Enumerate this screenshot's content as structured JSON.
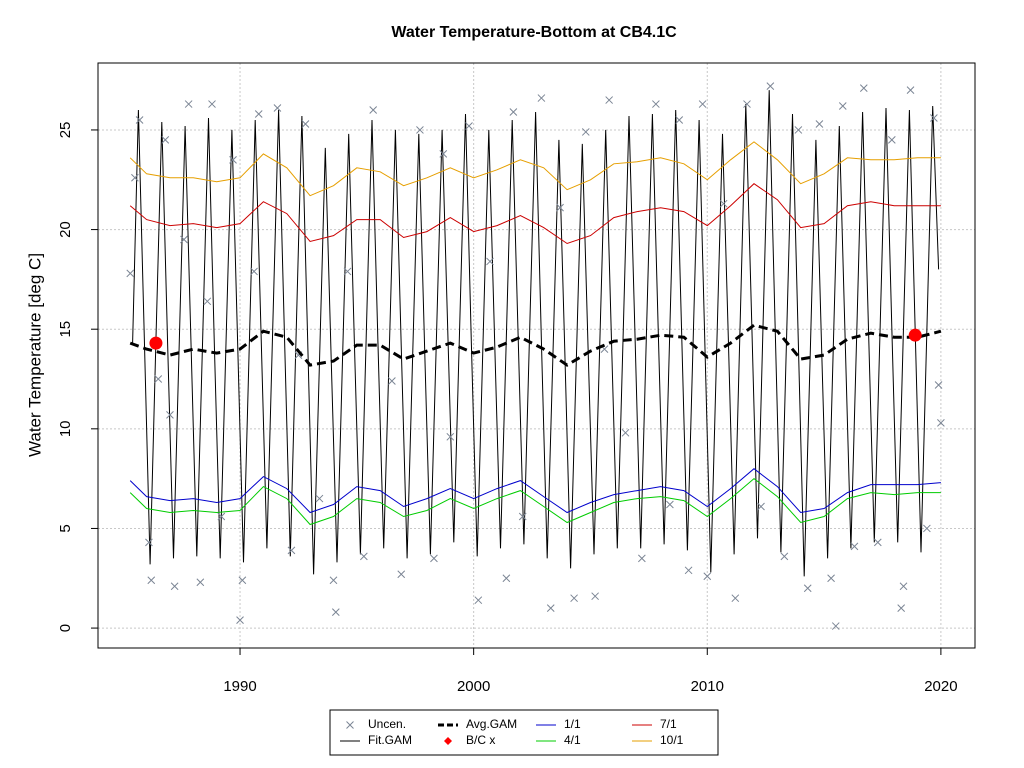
{
  "chart_data": {
    "type": "line",
    "title": "Water Temperature-Bottom at CB4.1C",
    "y_label": "Water Temperature [deg C]",
    "xlim": [
      1983.92,
      2021.46
    ],
    "ylim": [
      -1.0,
      28.36
    ],
    "xticks": [
      1990,
      2000,
      2010,
      2020
    ],
    "yticks": [
      0,
      5,
      10,
      15,
      20,
      25
    ],
    "grid": true,
    "legend_position": "bottom",
    "series": [
      {
        "name": "Uncen.",
        "style": "points",
        "color": "#7b8594",
        "x": [
          1985.3,
          1985.5,
          1985.7,
          1986.1,
          1986.2,
          1986.5,
          1986.8,
          1987.0,
          1987.2,
          1987.6,
          1987.8,
          1988.3,
          1988.6,
          1988.8,
          1989.2,
          1989.7,
          1990.0,
          1990.1,
          1990.6,
          1990.8,
          1991.6,
          1992.2,
          1992.5,
          1992.8,
          1993.4,
          1994.0,
          1994.1,
          1994.6,
          1995.3,
          1995.7,
          1996.5,
          1996.9,
          1997.7,
          1998.3,
          1998.7,
          1999.0,
          1999.8,
          2000.2,
          2000.7,
          2001.4,
          2001.7,
          2002.1,
          2002.9,
          2003.3,
          2003.7,
          2004.3,
          2004.8,
          2005.2,
          2005.6,
          2005.8,
          2006.5,
          2007.2,
          2007.8,
          2008.4,
          2008.8,
          2009.2,
          2009.8,
          2010.0,
          2010.7,
          2011.2,
          2011.7,
          2012.3,
          2012.7,
          2013.3,
          2013.9,
          2014.3,
          2014.8,
          2015.3,
          2015.5,
          2015.8,
          2016.3,
          2016.7,
          2017.3,
          2017.9,
          2018.3,
          2018.4,
          2018.7,
          2019.4,
          2019.7,
          2019.9,
          2020.0
        ],
        "values": [
          17.8,
          22.6,
          25.5,
          4.3,
          2.4,
          12.5,
          24.5,
          10.7,
          2.1,
          19.5,
          26.3,
          2.3,
          16.4,
          26.3,
          5.6,
          23.5,
          0.4,
          2.4,
          17.9,
          25.8,
          26.1,
          3.9,
          13.7,
          25.3,
          6.5,
          2.4,
          0.8,
          17.9,
          3.6,
          26.0,
          12.4,
          2.7,
          25.0,
          3.5,
          23.8,
          9.6,
          25.2,
          1.4,
          18.4,
          2.5,
          25.9,
          5.6,
          26.6,
          1.0,
          21.1,
          1.5,
          24.9,
          1.6,
          14.0,
          26.5,
          9.8,
          3.5,
          26.3,
          6.2,
          25.5,
          2.9,
          26.3,
          2.6,
          21.3,
          1.5,
          26.3,
          6.1,
          27.2,
          3.6,
          25.0,
          2.0,
          25.3,
          2.5,
          0.1,
          26.2,
          4.1,
          27.1,
          4.3,
          24.5,
          1.0,
          2.1,
          27.0,
          5.0,
          25.6,
          12.2,
          10.3
        ]
      },
      {
        "name": "Fit.GAM",
        "style": "line",
        "color": "#000000",
        "x": [
          1985.4,
          1985.65,
          1985.9,
          1986.15,
          1986.4,
          1986.65,
          1986.9,
          1987.15,
          1987.4,
          1987.65,
          1987.9,
          1988.15,
          1988.4,
          1988.65,
          1988.9,
          1989.15,
          1989.4,
          1989.65,
          1989.9,
          1990.15,
          1990.4,
          1990.65,
          1990.9,
          1991.15,
          1991.4,
          1991.65,
          1991.9,
          1992.15,
          1992.4,
          1992.65,
          1992.9,
          1993.15,
          1993.4,
          1993.65,
          1993.9,
          1994.15,
          1994.4,
          1994.65,
          1994.9,
          1995.15,
          1995.4,
          1995.65,
          1995.9,
          1996.15,
          1996.4,
          1996.65,
          1996.9,
          1997.15,
          1997.4,
          1997.65,
          1997.9,
          1998.15,
          1998.4,
          1998.65,
          1998.9,
          1999.15,
          1999.4,
          1999.65,
          1999.9,
          2000.15,
          2000.4,
          2000.65,
          2000.9,
          2001.15,
          2001.4,
          2001.65,
          2001.9,
          2002.15,
          2002.4,
          2002.65,
          2002.9,
          2003.15,
          2003.4,
          2003.65,
          2003.9,
          2004.15,
          2004.4,
          2004.65,
          2004.9,
          2005.15,
          2005.4,
          2005.65,
          2005.9,
          2006.15,
          2006.4,
          2006.65,
          2006.9,
          2007.15,
          2007.4,
          2007.65,
          2007.9,
          2008.15,
          2008.4,
          2008.65,
          2008.9,
          2009.15,
          2009.4,
          2009.65,
          2009.9,
          2010.15,
          2010.4,
          2010.65,
          2010.9,
          2011.15,
          2011.4,
          2011.65,
          2011.9,
          2012.15,
          2012.4,
          2012.65,
          2012.9,
          2013.15,
          2013.4,
          2013.65,
          2013.9,
          2014.15,
          2014.4,
          2014.65,
          2014.9,
          2015.15,
          2015.4,
          2015.65,
          2015.9,
          2016.15,
          2016.4,
          2016.65,
          2016.9,
          2017.15,
          2017.4,
          2017.65,
          2017.9,
          2018.15,
          2018.4,
          2018.65,
          2018.9,
          2019.15,
          2019.4,
          2019.65,
          2019.9
        ],
        "values": [
          14.3,
          26.0,
          14.6,
          3.2,
          14.4,
          25.4,
          14.3,
          3.5,
          14.4,
          25.2,
          14.3,
          3.6,
          14.6,
          25.6,
          14.3,
          3.5,
          14.3,
          25.0,
          14.2,
          3.3,
          14.4,
          25.5,
          14.7,
          4.0,
          15.0,
          26.0,
          14.8,
          3.6,
          14.7,
          25.7,
          14.2,
          2.7,
          13.4,
          24.1,
          13.5,
          3.3,
          14.0,
          24.8,
          14.1,
          3.7,
          14.6,
          25.5,
          14.4,
          4.0,
          14.5,
          25.0,
          14.2,
          3.5,
          14.1,
          24.8,
          14.1,
          3.7,
          14.3,
          25.0,
          14.5,
          4.3,
          15.0,
          25.8,
          14.4,
          3.6,
          14.3,
          25.0,
          14.3,
          4.0,
          14.7,
          25.5,
          14.9,
          4.2,
          15.0,
          25.9,
          14.4,
          3.5,
          14.0,
          24.5,
          13.9,
          3.0,
          13.6,
          24.3,
          14.0,
          3.7,
          14.3,
          25.0,
          14.4,
          4.0,
          14.8,
          25.7,
          14.9,
          4.0,
          14.9,
          25.8,
          15.0,
          4.2,
          15.1,
          26.0,
          14.9,
          3.9,
          14.7,
          25.5,
          14.2,
          2.8,
          13.8,
          24.8,
          14.6,
          3.7,
          15.0,
          26.3,
          15.4,
          4.5,
          15.7,
          27.0,
          15.4,
          3.8,
          14.8,
          25.8,
          14.2,
          2.6,
          13.5,
          24.5,
          13.9,
          3.5,
          14.3,
          25.2,
          14.6,
          4.0,
          14.9,
          25.9,
          15.0,
          4.3,
          15.2,
          26.1,
          15.1,
          4.3,
          15.1,
          26.0,
          14.9,
          3.8,
          15.0,
          26.2,
          18.0
        ]
      },
      {
        "name": "Avg.GAM",
        "style": "dashed",
        "color": "#000000",
        "x": [
          1985.3,
          1986,
          1987,
          1988,
          1989,
          1990,
          1991,
          1992,
          1993,
          1994,
          1995,
          1996,
          1997,
          1998,
          1999,
          2000,
          2001,
          2002,
          2003,
          2004,
          2005,
          2006,
          2007,
          2008,
          2009,
          2010,
          2011,
          2012,
          2013,
          2014,
          2015,
          2016,
          2017,
          2018,
          2019,
          2020
        ],
        "values": [
          14.3,
          14.0,
          13.7,
          14.0,
          13.8,
          14.0,
          14.9,
          14.6,
          13.2,
          13.4,
          14.2,
          14.2,
          13.5,
          13.9,
          14.3,
          13.8,
          14.1,
          14.6,
          14.0,
          13.2,
          13.9,
          14.4,
          14.5,
          14.7,
          14.6,
          13.6,
          14.3,
          15.2,
          14.9,
          13.5,
          13.7,
          14.5,
          14.8,
          14.6,
          14.6,
          14.9
        ]
      },
      {
        "name": "B/C x",
        "style": "dots",
        "color": "#ff0000",
        "x": [
          1986.4,
          2018.9
        ],
        "values": [
          14.3,
          14.7
        ]
      },
      {
        "name": "1/1",
        "style": "line",
        "color": "#0000cc",
        "x": [
          1985.3,
          1986,
          1987,
          1988,
          1989,
          1990,
          1991,
          1992,
          1993,
          1994,
          1995,
          1996,
          1997,
          1998,
          1999,
          2000,
          2001,
          2002,
          2003,
          2004,
          2005,
          2006,
          2007,
          2008,
          2009,
          2010,
          2011,
          2012,
          2013,
          2014,
          2015,
          2016,
          2017,
          2018,
          2019,
          2020
        ],
        "values": [
          7.4,
          6.6,
          6.4,
          6.5,
          6.3,
          6.5,
          7.6,
          7.0,
          5.8,
          6.2,
          7.1,
          6.9,
          6.1,
          6.5,
          7.0,
          6.5,
          7.0,
          7.4,
          6.6,
          5.8,
          6.3,
          6.7,
          6.9,
          7.1,
          6.9,
          6.1,
          7.0,
          8.0,
          7.1,
          5.8,
          6.0,
          6.8,
          7.2,
          7.2,
          7.2,
          7.3
        ]
      },
      {
        "name": "4/1",
        "style": "line",
        "color": "#00cc00",
        "x": [
          1985.3,
          1986,
          1987,
          1988,
          1989,
          1990,
          1991,
          1992,
          1993,
          1994,
          1995,
          1996,
          1997,
          1998,
          1999,
          2000,
          2001,
          2002,
          2003,
          2004,
          2005,
          2006,
          2007,
          2008,
          2009,
          2010,
          2011,
          2012,
          2013,
          2014,
          2015,
          2016,
          2017,
          2018,
          2019,
          2020
        ],
        "values": [
          6.8,
          6.0,
          5.8,
          5.9,
          5.8,
          5.9,
          7.1,
          6.5,
          5.2,
          5.6,
          6.5,
          6.3,
          5.6,
          5.9,
          6.5,
          6.0,
          6.5,
          6.9,
          6.1,
          5.3,
          5.8,
          6.3,
          6.5,
          6.6,
          6.4,
          5.6,
          6.5,
          7.5,
          6.6,
          5.3,
          5.6,
          6.5,
          6.8,
          6.7,
          6.8,
          6.8
        ]
      },
      {
        "name": "7/1",
        "style": "line",
        "color": "#cc0000",
        "x": [
          1985.3,
          1986,
          1987,
          1988,
          1989,
          1990,
          1991,
          1992,
          1993,
          1994,
          1995,
          1996,
          1997,
          1998,
          1999,
          2000,
          2001,
          2002,
          2003,
          2004,
          2005,
          2006,
          2007,
          2008,
          2009,
          2010,
          2011,
          2012,
          2013,
          2014,
          2015,
          2016,
          2017,
          2018,
          2019,
          2020
        ],
        "values": [
          21.2,
          20.5,
          20.2,
          20.3,
          20.1,
          20.3,
          21.4,
          20.8,
          19.4,
          19.7,
          20.5,
          20.5,
          19.6,
          19.9,
          20.6,
          19.9,
          20.2,
          20.7,
          20.1,
          19.3,
          19.7,
          20.6,
          20.9,
          21.1,
          20.9,
          20.2,
          21.2,
          22.3,
          21.5,
          20.1,
          20.3,
          21.2,
          21.4,
          21.2,
          21.2,
          21.2
        ]
      },
      {
        "name": "10/1",
        "style": "line",
        "color": "#e69f00",
        "x": [
          1985.3,
          1986,
          1987,
          1988,
          1989,
          1990,
          1991,
          1992,
          1993,
          1994,
          1995,
          1996,
          1997,
          1998,
          1999,
          2000,
          2001,
          2002,
          2003,
          2004,
          2005,
          2006,
          2007,
          2008,
          2009,
          2010,
          2011,
          2012,
          2013,
          2014,
          2015,
          2016,
          2017,
          2018,
          2019,
          2020
        ],
        "values": [
          23.6,
          22.8,
          22.6,
          22.6,
          22.4,
          22.6,
          23.8,
          23.1,
          21.7,
          22.2,
          23.1,
          22.9,
          22.2,
          22.6,
          23.1,
          22.6,
          23.0,
          23.5,
          23.1,
          22.0,
          22.5,
          23.3,
          23.4,
          23.6,
          23.3,
          22.5,
          23.5,
          24.4,
          23.5,
          22.3,
          22.8,
          23.6,
          23.5,
          23.5,
          23.6,
          23.6
        ]
      }
    ]
  }
}
